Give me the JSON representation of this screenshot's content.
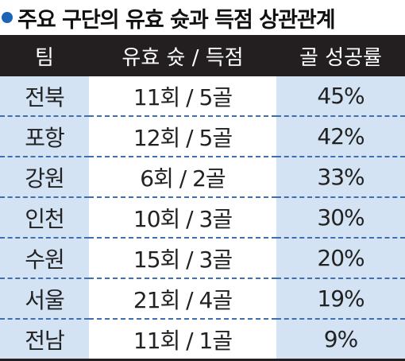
{
  "title": "주요 구단의 유효 슛과 득점 상관관계",
  "table": {
    "header": [
      "팀",
      "유효 슛 / 득점",
      "골 성공률"
    ],
    "rows": [
      [
        "전북",
        "11회 / 5골",
        "45%"
      ],
      [
        "포항",
        "12회 / 5골",
        "42%"
      ],
      [
        "강원",
        "6회 / 2골",
        "33%"
      ],
      [
        "인천",
        "10회 / 3골",
        "30%"
      ],
      [
        "수원",
        "15회 / 3골",
        "20%"
      ],
      [
        "서울",
        "21회 / 4골",
        "19%"
      ],
      [
        "전남",
        "11회 / 1골",
        "9%"
      ]
    ]
  }
}
